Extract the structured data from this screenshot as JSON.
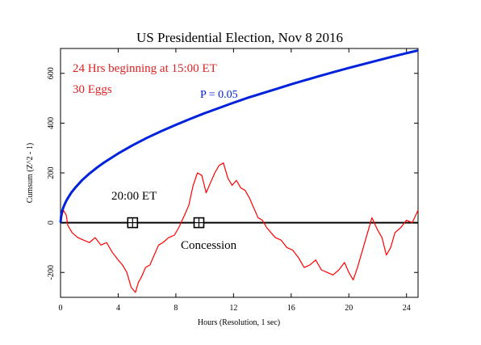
{
  "chart_data": {
    "type": "line",
    "title": "US Presidential Election, Nov 8 2016",
    "xlabel": "Hours (Resolution, 1 sec)",
    "ylabel": "Cumsum (Z^2 - 1)",
    "xlim": [
      0,
      24.8
    ],
    "ylim": [
      -300,
      700
    ],
    "x_ticks": [
      0,
      4,
      8,
      12,
      16,
      20,
      24
    ],
    "y_ticks": [
      -200,
      0,
      200,
      400,
      600
    ],
    "grid": false,
    "annotations": {
      "period": "24 Hrs beginning at 15:00 ET",
      "eggs": "30 Eggs",
      "p_label": "P = 0.05",
      "marker1_label": "20:00 ET",
      "marker2_label": "Concession"
    },
    "markers": [
      {
        "x": 5.0,
        "y": 0
      },
      {
        "x": 9.6,
        "y": 0
      }
    ],
    "series": [
      {
        "color": "#ff0000",
        "x": [
          0,
          0.2,
          0.4,
          0.5,
          0.8,
          1.2,
          1.6,
          2.0,
          2.4,
          2.8,
          3.2,
          3.6,
          4.0,
          4.3,
          4.6,
          4.9,
          5.2,
          5.4,
          5.6,
          5.9,
          6.2,
          6.5,
          6.8,
          7.1,
          7.5,
          7.9,
          8.2,
          8.6,
          8.9,
          9.2,
          9.5,
          9.8,
          10.1,
          10.4,
          10.7,
          11.0,
          11.3,
          11.6,
          11.9,
          12.2,
          12.5,
          12.8,
          13.1,
          13.4,
          13.7,
          14.0,
          14.3,
          14.6,
          14.9,
          15.3,
          15.7,
          16.1,
          16.5,
          16.9,
          17.3,
          17.7,
          18.1,
          18.5,
          18.9,
          19.3,
          19.7,
          20.0,
          20.3,
          20.6,
          20.9,
          21.3,
          21.6,
          22.0,
          22.3,
          22.6,
          22.9,
          23.2,
          23.6,
          24.0,
          24.4,
          24.8
        ],
        "y": [
          0,
          50,
          30,
          -10,
          -40,
          -60,
          -70,
          -80,
          -60,
          -90,
          -80,
          -120,
          -150,
          -170,
          -200,
          -260,
          -280,
          -240,
          -220,
          -180,
          -170,
          -130,
          -90,
          -80,
          -60,
          -50,
          -20,
          30,
          70,
          150,
          200,
          190,
          120,
          160,
          200,
          230,
          240,
          180,
          150,
          170,
          140,
          130,
          100,
          60,
          20,
          10,
          -20,
          -40,
          -60,
          -70,
          -100,
          -110,
          -140,
          -180,
          -170,
          -150,
          -190,
          -200,
          -210,
          -190,
          -160,
          -200,
          -230,
          -180,
          -120,
          -40,
          20,
          -30,
          -60,
          -130,
          -100,
          -40,
          -20,
          10,
          0,
          50
        ]
      },
      {
        "name": "P = 0.05",
        "color": "#0022dd",
        "x": [
          0,
          0.05,
          0.1,
          0.2,
          0.35,
          0.5,
          0.75,
          1.0,
          1.5,
          2.0,
          2.5,
          3.0,
          4.0,
          5.0,
          6.0,
          7.0,
          8.0,
          9.0,
          10.0,
          11.0,
          12.0,
          13.0,
          14.0,
          15.0,
          16.0,
          17.0,
          18.0,
          19.0,
          20.0,
          21.0,
          22.0,
          23.0,
          24.0,
          24.8
        ],
        "y": [
          0,
          32,
          44,
          62,
          82,
          98,
          121,
          139,
          171,
          197,
          220,
          241,
          278,
          311,
          341,
          368,
          393,
          417,
          440,
          461,
          482,
          502,
          520,
          538,
          556,
          573,
          590,
          606,
          622,
          637,
          652,
          667,
          681,
          692
        ]
      }
    ]
  }
}
